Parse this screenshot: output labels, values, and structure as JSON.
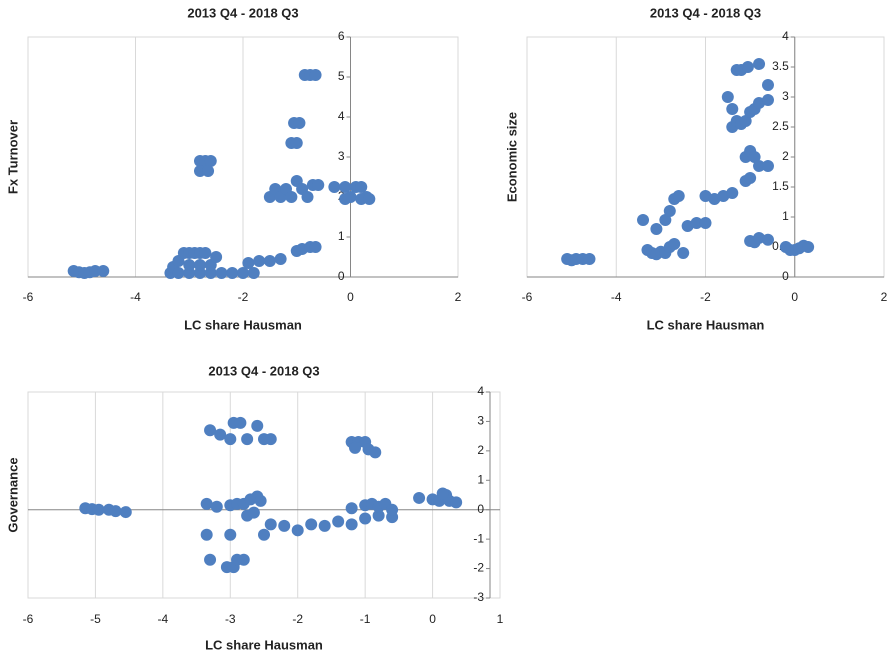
{
  "chart_data": [
    {
      "type": "scatter",
      "title": "2013 Q4 - 2018 Q3",
      "xlabel": "LC share Hausman",
      "ylabel": "Fx Turnover",
      "color": "#4f7fc0",
      "xlim": [
        -6,
        2
      ],
      "ylim": [
        0,
        6
      ],
      "xticks": [
        -6,
        -4,
        -2,
        0,
        2
      ],
      "yticks": [
        0,
        1,
        2,
        3,
        4,
        5,
        6
      ],
      "x": [
        -5.15,
        -5.05,
        -4.95,
        -4.85,
        -4.75,
        -4.6,
        -3.35,
        -3.3,
        -3.2,
        -3.1,
        -3.0,
        -2.9,
        -2.8,
        -2.7,
        -3.2,
        -3.0,
        -2.8,
        -2.6,
        -3.0,
        -2.8,
        -2.6,
        -2.5,
        -2.4,
        -2.2,
        -2.0,
        -1.8,
        -1.9,
        -1.7,
        -1.5,
        -1.3,
        -2.8,
        -2.7,
        -2.6,
        -2.8,
        -2.65,
        -1.5,
        -1.4,
        -1.3,
        -1.2,
        -1.1,
        -1.0,
        -0.9,
        -0.8,
        -0.7,
        -0.6,
        -1.1,
        -1.0,
        -1.05,
        -0.95,
        -0.85,
        -0.75,
        -0.65,
        -1.0,
        -0.9,
        -0.75,
        -0.65,
        -0.3,
        -0.1,
        0.0,
        0.1,
        0.2,
        0.3,
        -0.1,
        0.2,
        0.35
      ],
      "y": [
        0.15,
        0.12,
        0.1,
        0.12,
        0.15,
        0.15,
        0.1,
        0.25,
        0.4,
        0.6,
        0.6,
        0.6,
        0.6,
        0.6,
        0.1,
        0.1,
        0.1,
        0.1,
        0.3,
        0.3,
        0.3,
        0.5,
        0.1,
        0.1,
        0.1,
        0.1,
        0.35,
        0.4,
        0.4,
        0.45,
        2.9,
        2.9,
        2.9,
        2.65,
        2.65,
        2.0,
        2.2,
        2.0,
        2.2,
        2.0,
        2.4,
        2.2,
        2.0,
        2.3,
        2.3,
        3.35,
        3.35,
        3.85,
        3.85,
        5.05,
        5.05,
        5.05,
        0.65,
        0.7,
        0.75,
        0.75,
        2.25,
        2.25,
        2.0,
        2.25,
        2.25,
        2.0,
        1.95,
        1.95,
        1.95
      ]
    },
    {
      "type": "scatter",
      "title": "2013 Q4 - 2018 Q3",
      "xlabel": "LC share Hausman",
      "ylabel": "Economic size",
      "color": "#4f7fc0",
      "xlim": [
        -6,
        2
      ],
      "ylim": [
        0,
        4
      ],
      "xticks": [
        -6,
        -4,
        -2,
        0,
        2
      ],
      "yticks": [
        0,
        0.5,
        1,
        1.5,
        2,
        2.5,
        3,
        3.5,
        4
      ],
      "x": [
        -5.1,
        -5.0,
        -4.9,
        -4.75,
        -4.6,
        -3.3,
        -3.2,
        -3.1,
        -3.0,
        -2.9,
        -2.8,
        -2.7,
        -2.5,
        -3.4,
        -3.1,
        -2.9,
        -2.8,
        -2.7,
        -2.6,
        -2.4,
        -2.2,
        -2.0,
        -2.0,
        -1.8,
        -1.6,
        -1.4,
        -1.4,
        -1.3,
        -1.2,
        -1.1,
        -1.0,
        -0.9,
        -0.8,
        -0.6,
        -1.5,
        -1.4,
        -1.3,
        -1.2,
        -1.05,
        -0.8,
        -0.6,
        -1.1,
        -1.0,
        -0.9,
        -0.8,
        -0.6,
        -1.1,
        -1.0,
        -1.0,
        -0.9,
        -0.8,
        -0.6,
        -0.2,
        -0.1,
        0.0,
        0.1,
        0.2,
        0.3
      ],
      "y": [
        0.3,
        0.28,
        0.3,
        0.3,
        0.3,
        0.45,
        0.4,
        0.38,
        0.42,
        0.4,
        0.5,
        0.55,
        0.4,
        0.95,
        0.8,
        0.95,
        1.1,
        1.3,
        1.35,
        0.85,
        0.9,
        0.9,
        1.35,
        1.3,
        1.35,
        1.4,
        2.5,
        2.6,
        2.55,
        2.6,
        2.75,
        2.8,
        2.9,
        2.95,
        3.0,
        2.8,
        3.45,
        3.45,
        3.5,
        3.55,
        3.2,
        2.0,
        2.1,
        2.0,
        1.85,
        1.85,
        1.6,
        1.65,
        0.6,
        0.58,
        0.65,
        0.62,
        0.5,
        0.45,
        0.45,
        0.48,
        0.52,
        0.5
      ]
    },
    {
      "type": "scatter",
      "title": "2013 Q4 - 2018 Q3",
      "xlabel": "LC share Hausman",
      "ylabel": "Governance",
      "color": "#4f7fc0",
      "xlim": [
        -6,
        1
      ],
      "ylim": [
        -3,
        4
      ],
      "xticks": [
        -6,
        -5,
        -4,
        -3,
        -2,
        -1,
        0,
        1
      ],
      "yticks": [
        -3,
        -2,
        -1,
        0,
        1,
        2,
        3,
        4
      ],
      "x": [
        -5.15,
        -5.05,
        -4.95,
        -4.8,
        -4.7,
        -4.55,
        -3.3,
        -3.15,
        -3.0,
        -2.95,
        -2.85,
        -2.75,
        -2.6,
        -2.5,
        -2.4,
        -3.35,
        -3.2,
        -3.0,
        -2.9,
        -2.8,
        -2.7,
        -2.6,
        -2.75,
        -2.65,
        -2.55,
        -3.35,
        -3.0,
        -3.3,
        -3.05,
        -2.95,
        -2.9,
        -2.8,
        -2.5,
        -2.4,
        -2.2,
        -2.0,
        -1.8,
        -1.6,
        -1.4,
        -1.2,
        -1.0,
        -0.8,
        -0.6,
        -1.2,
        -1.0,
        -0.9,
        -0.8,
        -0.7,
        -0.6,
        -1.2,
        -1.1,
        -1.0,
        -1.15,
        -0.95,
        -0.85,
        -0.2,
        0.0,
        0.1,
        0.2,
        0.25,
        0.35,
        0.15
      ],
      "y": [
        0.05,
        0.02,
        0.0,
        0.0,
        -0.05,
        -0.08,
        2.7,
        2.55,
        2.4,
        2.95,
        2.95,
        2.4,
        2.85,
        2.4,
        2.4,
        0.2,
        0.1,
        0.15,
        0.2,
        0.2,
        0.35,
        0.45,
        -0.2,
        -0.1,
        0.3,
        -0.85,
        -0.85,
        -1.7,
        -1.95,
        -1.95,
        -1.7,
        -1.7,
        -0.85,
        -0.5,
        -0.55,
        -0.7,
        -0.5,
        -0.55,
        -0.4,
        -0.5,
        -0.3,
        -0.2,
        -0.25,
        0.05,
        0.15,
        0.2,
        0.1,
        0.2,
        0.0,
        2.3,
        2.3,
        2.3,
        2.1,
        2.05,
        1.95,
        0.4,
        0.35,
        0.3,
        0.5,
        0.3,
        0.25,
        0.55
      ]
    }
  ]
}
